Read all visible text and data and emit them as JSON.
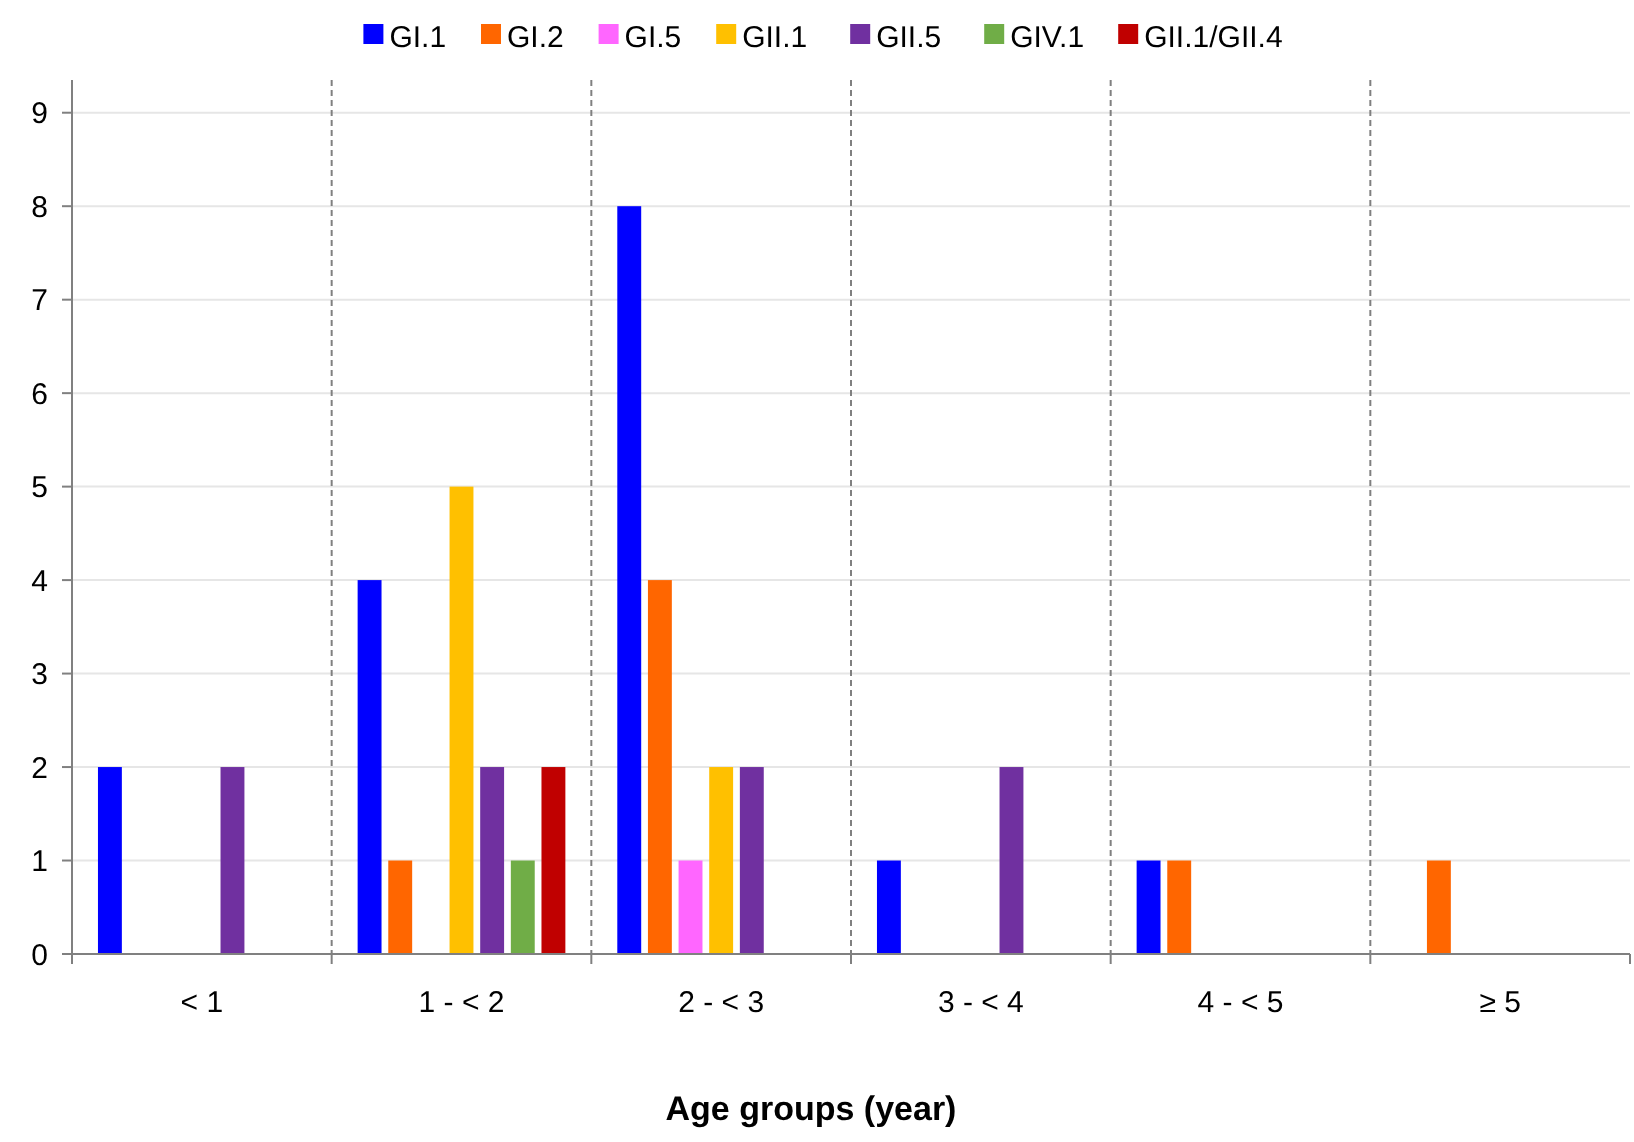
{
  "chart_data": {
    "type": "bar",
    "xlabel": "Age groups (year)",
    "categories": [
      "< 1",
      "1 - < 2",
      "2 - < 3",
      "3 - < 4",
      "4 - < 5",
      "≥ 5"
    ],
    "series": [
      {
        "name": "GI.1",
        "color": "#0000ff",
        "values": [
          2,
          4,
          8,
          1,
          1,
          0
        ]
      },
      {
        "name": "GI.2",
        "color": "#ff6600",
        "values": [
          0,
          1,
          4,
          0,
          1,
          1
        ]
      },
      {
        "name": "GI.5",
        "color": "#ff66ff",
        "values": [
          0,
          0,
          1,
          0,
          0,
          0
        ]
      },
      {
        "name": "GII.1",
        "color": "#ffc000",
        "values": [
          0,
          5,
          2,
          0,
          0,
          0
        ]
      },
      {
        "name": "GII.5",
        "color": "#7030a0",
        "values": [
          2,
          2,
          2,
          2,
          0,
          0
        ]
      },
      {
        "name": "GIV.1",
        "color": "#70ad47",
        "values": [
          0,
          1,
          0,
          0,
          0,
          0
        ]
      },
      {
        "name": "GII.1/GII.4",
        "color": "#c00000",
        "values": [
          0,
          2,
          0,
          0,
          0,
          0
        ]
      }
    ],
    "ylim": [
      0,
      9.35
    ],
    "yticks": [
      0,
      1,
      2,
      3,
      4,
      5,
      6,
      7,
      8,
      9
    ],
    "grid": true,
    "legend": "top"
  }
}
